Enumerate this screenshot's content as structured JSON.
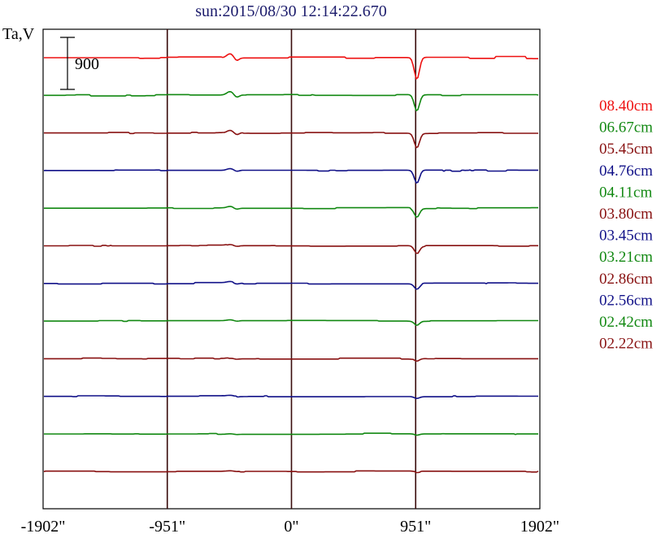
{
  "chart_data": {
    "type": "line",
    "title": "sun:2015/08/30 12:14:22.670",
    "ylabel": "Ta,V",
    "scale_bar_label": "900",
    "x_ticks": [
      "-1902\"",
      "-951\"",
      "0\"",
      "951\"",
      "1902\""
    ],
    "x_tick_values": [
      -1902,
      -951,
      0,
      951,
      1902
    ],
    "xlim": [
      -1902,
      1902
    ],
    "vertical_lines_at": [
      -951,
      0,
      951
    ],
    "grid": false,
    "legend_position": "right",
    "colors": {
      "title": "#1c1c6c",
      "axis": "#000000",
      "red": "#ee1111",
      "green": "#118811",
      "maroon": "#881111",
      "navy": "#111188",
      "divider": "#3a0c0c"
    },
    "series": [
      {
        "name": "08.40cm",
        "color": "#ee1111",
        "noise": 22,
        "dip": 380,
        "bump": 70
      },
      {
        "name": "06.67cm",
        "color": "#118811",
        "noise": 12,
        "dip": 280,
        "bump": 60
      },
      {
        "name": "05.45cm",
        "color": "#881111",
        "noise": 10,
        "dip": 250,
        "bump": 45
      },
      {
        "name": "04.76cm",
        "color": "#111188",
        "noise": 12,
        "dip": 220,
        "bump": 30
      },
      {
        "name": "04.11cm",
        "color": "#118811",
        "noise": 10,
        "dip": 150,
        "bump": 25
      },
      {
        "name": "03.80cm",
        "color": "#881111",
        "noise": 10,
        "dip": 130,
        "bump": 20
      },
      {
        "name": "03.45cm",
        "color": "#111188",
        "noise": 12,
        "dip": 90,
        "bump": 20
      },
      {
        "name": "03.21cm",
        "color": "#118811",
        "noise": 10,
        "dip": 70,
        "bump": 15
      },
      {
        "name": "02.86cm",
        "color": "#881111",
        "noise": 12,
        "dip": 40,
        "bump": 10
      },
      {
        "name": "02.56cm",
        "color": "#111188",
        "noise": 10,
        "dip": 30,
        "bump": 10
      },
      {
        "name": "02.42cm",
        "color": "#118811",
        "noise": 10,
        "dip": 20,
        "bump": 8
      },
      {
        "name": "02.22cm",
        "color": "#881111",
        "noise": 10,
        "dip": 15,
        "bump": 8
      }
    ]
  }
}
